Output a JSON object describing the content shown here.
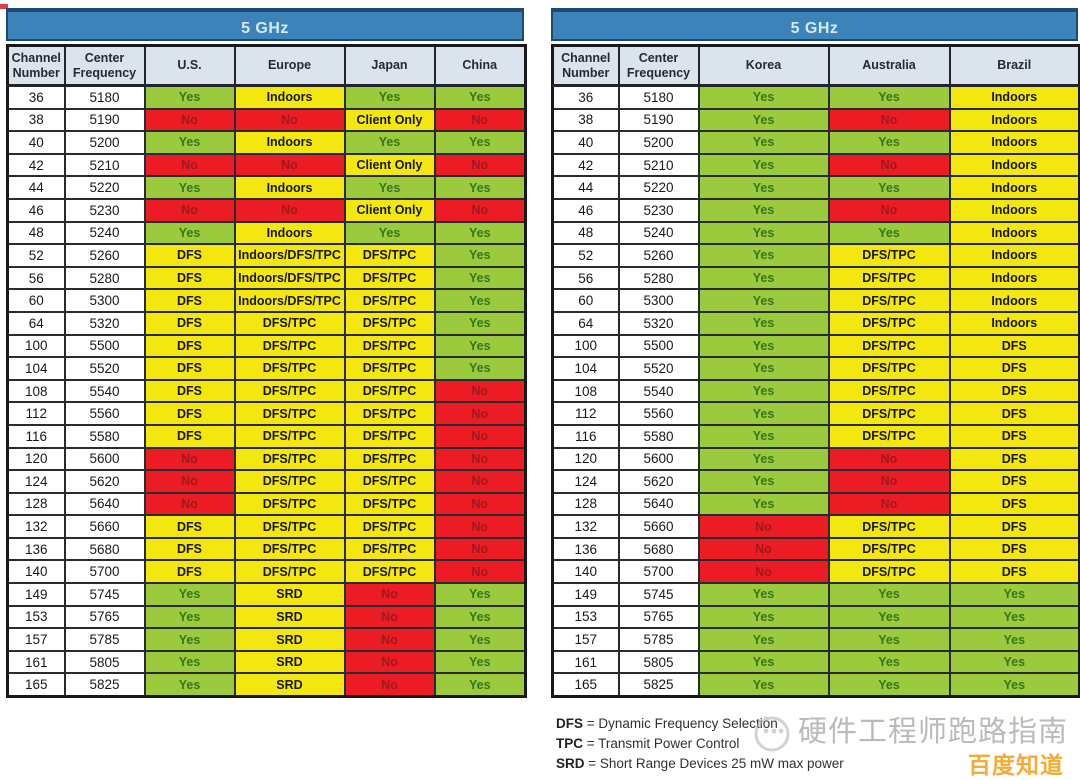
{
  "colors": {
    "banner": "#3b83b9",
    "banner_text": "#d6e9f6",
    "header_bg": "#dbe3ec",
    "green": "#9bca3d",
    "green_text": "#35761d",
    "yellow": "#f3e70f",
    "red": "#ec1c24",
    "red_text": "#9c191d",
    "brand_orange": "#f29e13",
    "watermark_gray": "#909090"
  },
  "tables": [
    {
      "id": "left",
      "title": "5 GHz",
      "columns": [
        "Channel Number",
        "Center Frequency",
        "U.S.",
        "Europe",
        "Japan",
        "China"
      ],
      "rows": [
        [
          "36",
          "5180",
          [
            "Yes",
            "g"
          ],
          [
            "Indoors",
            "y"
          ],
          [
            "Yes",
            "g"
          ],
          [
            "Yes",
            "g"
          ]
        ],
        [
          "38",
          "5190",
          [
            "No",
            "r"
          ],
          [
            "No",
            "r"
          ],
          [
            "Client Only",
            "y"
          ],
          [
            "No",
            "r"
          ]
        ],
        [
          "40",
          "5200",
          [
            "Yes",
            "g"
          ],
          [
            "Indoors",
            "y"
          ],
          [
            "Yes",
            "g"
          ],
          [
            "Yes",
            "g"
          ]
        ],
        [
          "42",
          "5210",
          [
            "No",
            "r"
          ],
          [
            "No",
            "r"
          ],
          [
            "Client Only",
            "y"
          ],
          [
            "No",
            "r"
          ]
        ],
        [
          "44",
          "5220",
          [
            "Yes",
            "g"
          ],
          [
            "Indoors",
            "y"
          ],
          [
            "Yes",
            "g"
          ],
          [
            "Yes",
            "g"
          ]
        ],
        [
          "46",
          "5230",
          [
            "No",
            "r"
          ],
          [
            "No",
            "r"
          ],
          [
            "Client Only",
            "y"
          ],
          [
            "No",
            "r"
          ]
        ],
        [
          "48",
          "5240",
          [
            "Yes",
            "g"
          ],
          [
            "Indoors",
            "y"
          ],
          [
            "Yes",
            "g"
          ],
          [
            "Yes",
            "g"
          ]
        ],
        [
          "52",
          "5260",
          [
            "DFS",
            "y"
          ],
          [
            "Indoors/DFS/TPC",
            "y"
          ],
          [
            "DFS/TPC",
            "y"
          ],
          [
            "Yes",
            "g"
          ]
        ],
        [
          "56",
          "5280",
          [
            "DFS",
            "y"
          ],
          [
            "Indoors/DFS/TPC",
            "y"
          ],
          [
            "DFS/TPC",
            "y"
          ],
          [
            "Yes",
            "g"
          ]
        ],
        [
          "60",
          "5300",
          [
            "DFS",
            "y"
          ],
          [
            "Indoors/DFS/TPC",
            "y"
          ],
          [
            "DFS/TPC",
            "y"
          ],
          [
            "Yes",
            "g"
          ]
        ],
        [
          "64",
          "5320",
          [
            "DFS",
            "y"
          ],
          [
            "DFS/TPC",
            "y"
          ],
          [
            "DFS/TPC",
            "y"
          ],
          [
            "Yes",
            "g"
          ]
        ],
        [
          "100",
          "5500",
          [
            "DFS",
            "y"
          ],
          [
            "DFS/TPC",
            "y"
          ],
          [
            "DFS/TPC",
            "y"
          ],
          [
            "Yes",
            "g"
          ]
        ],
        [
          "104",
          "5520",
          [
            "DFS",
            "y"
          ],
          [
            "DFS/TPC",
            "y"
          ],
          [
            "DFS/TPC",
            "y"
          ],
          [
            "Yes",
            "g"
          ]
        ],
        [
          "108",
          "5540",
          [
            "DFS",
            "y"
          ],
          [
            "DFS/TPC",
            "y"
          ],
          [
            "DFS/TPC",
            "y"
          ],
          [
            "No",
            "r"
          ]
        ],
        [
          "112",
          "5560",
          [
            "DFS",
            "y"
          ],
          [
            "DFS/TPC",
            "y"
          ],
          [
            "DFS/TPC",
            "y"
          ],
          [
            "No",
            "r"
          ]
        ],
        [
          "116",
          "5580",
          [
            "DFS",
            "y"
          ],
          [
            "DFS/TPC",
            "y"
          ],
          [
            "DFS/TPC",
            "y"
          ],
          [
            "No",
            "r"
          ]
        ],
        [
          "120",
          "5600",
          [
            "No",
            "r"
          ],
          [
            "DFS/TPC",
            "y"
          ],
          [
            "DFS/TPC",
            "y"
          ],
          [
            "No",
            "r"
          ]
        ],
        [
          "124",
          "5620",
          [
            "No",
            "r"
          ],
          [
            "DFS/TPC",
            "y"
          ],
          [
            "DFS/TPC",
            "y"
          ],
          [
            "No",
            "r"
          ]
        ],
        [
          "128",
          "5640",
          [
            "No",
            "r"
          ],
          [
            "DFS/TPC",
            "y"
          ],
          [
            "DFS/TPC",
            "y"
          ],
          [
            "No",
            "r"
          ]
        ],
        [
          "132",
          "5660",
          [
            "DFS",
            "y"
          ],
          [
            "DFS/TPC",
            "y"
          ],
          [
            "DFS/TPC",
            "y"
          ],
          [
            "No",
            "r"
          ]
        ],
        [
          "136",
          "5680",
          [
            "DFS",
            "y"
          ],
          [
            "DFS/TPC",
            "y"
          ],
          [
            "DFS/TPC",
            "y"
          ],
          [
            "No",
            "r"
          ]
        ],
        [
          "140",
          "5700",
          [
            "DFS",
            "y"
          ],
          [
            "DFS/TPC",
            "y"
          ],
          [
            "DFS/TPC",
            "y"
          ],
          [
            "No",
            "r"
          ]
        ],
        [
          "149",
          "5745",
          [
            "Yes",
            "g"
          ],
          [
            "SRD",
            "y"
          ],
          [
            "No",
            "r"
          ],
          [
            "Yes",
            "g"
          ]
        ],
        [
          "153",
          "5765",
          [
            "Yes",
            "g"
          ],
          [
            "SRD",
            "y"
          ],
          [
            "No",
            "r"
          ],
          [
            "Yes",
            "g"
          ]
        ],
        [
          "157",
          "5785",
          [
            "Yes",
            "g"
          ],
          [
            "SRD",
            "y"
          ],
          [
            "No",
            "r"
          ],
          [
            "Yes",
            "g"
          ]
        ],
        [
          "161",
          "5805",
          [
            "Yes",
            "g"
          ],
          [
            "SRD",
            "y"
          ],
          [
            "No",
            "r"
          ],
          [
            "Yes",
            "g"
          ]
        ],
        [
          "165",
          "5825",
          [
            "Yes",
            "g"
          ],
          [
            "SRD",
            "y"
          ],
          [
            "No",
            "r"
          ],
          [
            "Yes",
            "g"
          ]
        ]
      ]
    },
    {
      "id": "right",
      "title": "5 GHz",
      "columns": [
        "Channel Number",
        "Center Frequency",
        "Korea",
        "Australia",
        "Brazil"
      ],
      "rows": [
        [
          "36",
          "5180",
          [
            "Yes",
            "g"
          ],
          [
            "Yes",
            "g"
          ],
          [
            "Indoors",
            "y"
          ]
        ],
        [
          "38",
          "5190",
          [
            "Yes",
            "g"
          ],
          [
            "No",
            "r"
          ],
          [
            "Indoors",
            "y"
          ]
        ],
        [
          "40",
          "5200",
          [
            "Yes",
            "g"
          ],
          [
            "Yes",
            "g"
          ],
          [
            "Indoors",
            "y"
          ]
        ],
        [
          "42",
          "5210",
          [
            "Yes",
            "g"
          ],
          [
            "No",
            "r"
          ],
          [
            "Indoors",
            "y"
          ]
        ],
        [
          "44",
          "5220",
          [
            "Yes",
            "g"
          ],
          [
            "Yes",
            "g"
          ],
          [
            "Indoors",
            "y"
          ]
        ],
        [
          "46",
          "5230",
          [
            "Yes",
            "g"
          ],
          [
            "No",
            "r"
          ],
          [
            "Indoors",
            "y"
          ]
        ],
        [
          "48",
          "5240",
          [
            "Yes",
            "g"
          ],
          [
            "Yes",
            "g"
          ],
          [
            "Indoors",
            "y"
          ]
        ],
        [
          "52",
          "5260",
          [
            "Yes",
            "g"
          ],
          [
            "DFS/TPC",
            "y"
          ],
          [
            "Indoors",
            "y"
          ]
        ],
        [
          "56",
          "5280",
          [
            "Yes",
            "g"
          ],
          [
            "DFS/TPC",
            "y"
          ],
          [
            "Indoors",
            "y"
          ]
        ],
        [
          "60",
          "5300",
          [
            "Yes",
            "g"
          ],
          [
            "DFS/TPC",
            "y"
          ],
          [
            "Indoors",
            "y"
          ]
        ],
        [
          "64",
          "5320",
          [
            "Yes",
            "g"
          ],
          [
            "DFS/TPC",
            "y"
          ],
          [
            "Indoors",
            "y"
          ]
        ],
        [
          "100",
          "5500",
          [
            "Yes",
            "g"
          ],
          [
            "DFS/TPC",
            "y"
          ],
          [
            "DFS",
            "y"
          ]
        ],
        [
          "104",
          "5520",
          [
            "Yes",
            "g"
          ],
          [
            "DFS/TPC",
            "y"
          ],
          [
            "DFS",
            "y"
          ]
        ],
        [
          "108",
          "5540",
          [
            "Yes",
            "g"
          ],
          [
            "DFS/TPC",
            "y"
          ],
          [
            "DFS",
            "y"
          ]
        ],
        [
          "112",
          "5560",
          [
            "Yes",
            "g"
          ],
          [
            "DFS/TPC",
            "y"
          ],
          [
            "DFS",
            "y"
          ]
        ],
        [
          "116",
          "5580",
          [
            "Yes",
            "g"
          ],
          [
            "DFS/TPC",
            "y"
          ],
          [
            "DFS",
            "y"
          ]
        ],
        [
          "120",
          "5600",
          [
            "Yes",
            "g"
          ],
          [
            "No",
            "r"
          ],
          [
            "DFS",
            "y"
          ]
        ],
        [
          "124",
          "5620",
          [
            "Yes",
            "g"
          ],
          [
            "No",
            "r"
          ],
          [
            "DFS",
            "y"
          ]
        ],
        [
          "128",
          "5640",
          [
            "Yes",
            "g"
          ],
          [
            "No",
            "r"
          ],
          [
            "DFS",
            "y"
          ]
        ],
        [
          "132",
          "5660",
          [
            "No",
            "r"
          ],
          [
            "DFS/TPC",
            "y"
          ],
          [
            "DFS",
            "y"
          ]
        ],
        [
          "136",
          "5680",
          [
            "No",
            "r"
          ],
          [
            "DFS/TPC",
            "y"
          ],
          [
            "DFS",
            "y"
          ]
        ],
        [
          "140",
          "5700",
          [
            "No",
            "r"
          ],
          [
            "DFS/TPC",
            "y"
          ],
          [
            "DFS",
            "y"
          ]
        ],
        [
          "149",
          "5745",
          [
            "Yes",
            "g"
          ],
          [
            "Yes",
            "g"
          ],
          [
            "Yes",
            "g"
          ]
        ],
        [
          "153",
          "5765",
          [
            "Yes",
            "g"
          ],
          [
            "Yes",
            "g"
          ],
          [
            "Yes",
            "g"
          ]
        ],
        [
          "157",
          "5785",
          [
            "Yes",
            "g"
          ],
          [
            "Yes",
            "g"
          ],
          [
            "Yes",
            "g"
          ]
        ],
        [
          "161",
          "5805",
          [
            "Yes",
            "g"
          ],
          [
            "Yes",
            "g"
          ],
          [
            "Yes",
            "g"
          ]
        ],
        [
          "165",
          "5825",
          [
            "Yes",
            "g"
          ],
          [
            "Yes",
            "g"
          ],
          [
            "Yes",
            "g"
          ]
        ]
      ]
    }
  ],
  "legend": {
    "items": [
      {
        "abbr": "DFS",
        "rest": "= Dynamic Frequency Selection"
      },
      {
        "abbr": "TPC",
        "rest": "= Transmit Power Control"
      },
      {
        "abbr": "SRD",
        "rest": "= Short Range Devices 25 mW max power"
      }
    ]
  },
  "watermark": {
    "text": "硬件工程师跑路指南",
    "brand": "百度知道"
  }
}
